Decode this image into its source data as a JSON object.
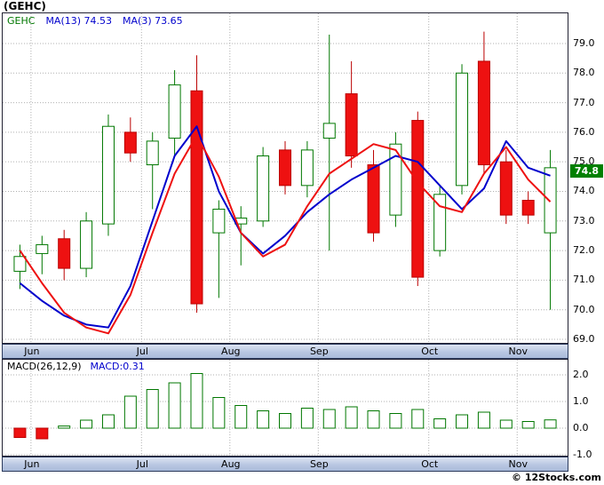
{
  "copyright": "© 12Stocks.com",
  "chart_data": {
    "type": "candlestick",
    "title": "(GEHC)",
    "symbol": "GEHC",
    "legend": {
      "symbol": "GEHC",
      "ma13": "MA(13) 74.53",
      "ma3": "MA(3) 73.65",
      "macd_label": "MACD(26,12,9)",
      "macd_value": "MACD:0.31"
    },
    "last_price": "74.8",
    "price_axis": {
      "ticks": [
        "79.0",
        "78.0",
        "77.0",
        "76.0",
        "75.0",
        "74.0",
        "73.0",
        "72.0",
        "71.0",
        "70.0",
        "69.0"
      ],
      "max": 80.05,
      "min": 68.85
    },
    "months": [
      {
        "label": "Jun",
        "i": 0
      },
      {
        "label": "Jul",
        "i": 5
      },
      {
        "label": "Aug",
        "i": 9
      },
      {
        "label": "Sep",
        "i": 13
      },
      {
        "label": "Oct",
        "i": 18
      },
      {
        "label": "Nov",
        "i": 22
      }
    ],
    "candles": [
      {
        "o": 71.3,
        "h": 72.2,
        "l": 70.7,
        "c": 71.8
      },
      {
        "o": 71.9,
        "h": 72.5,
        "l": 71.2,
        "c": 72.2
      },
      {
        "o": 72.4,
        "h": 72.7,
        "l": 71.0,
        "c": 71.4
      },
      {
        "o": 71.4,
        "h": 73.3,
        "l": 71.1,
        "c": 73.0
      },
      {
        "o": 72.9,
        "h": 76.6,
        "l": 72.5,
        "c": 76.2
      },
      {
        "o": 76.0,
        "h": 76.5,
        "l": 75.0,
        "c": 75.3
      },
      {
        "o": 74.9,
        "h": 76.0,
        "l": 73.4,
        "c": 75.7
      },
      {
        "o": 75.8,
        "h": 78.1,
        "l": 75.2,
        "c": 77.6
      },
      {
        "o": 77.4,
        "h": 78.6,
        "l": 69.9,
        "c": 70.2
      },
      {
        "o": 72.6,
        "h": 73.7,
        "l": 70.4,
        "c": 73.4
      },
      {
        "o": 72.9,
        "h": 73.5,
        "l": 71.5,
        "c": 73.1
      },
      {
        "o": 73.0,
        "h": 75.5,
        "l": 72.8,
        "c": 75.2
      },
      {
        "o": 75.4,
        "h": 75.7,
        "l": 73.9,
        "c": 74.2
      },
      {
        "o": 74.2,
        "h": 75.7,
        "l": 73.8,
        "c": 75.4
      },
      {
        "o": 75.8,
        "h": 79.3,
        "l": 72.0,
        "c": 76.3
      },
      {
        "o": 77.3,
        "h": 78.4,
        "l": 74.8,
        "c": 75.2
      },
      {
        "o": 74.9,
        "h": 75.4,
        "l": 72.3,
        "c": 72.6
      },
      {
        "o": 73.2,
        "h": 76.0,
        "l": 72.8,
        "c": 75.6
      },
      {
        "o": 76.4,
        "h": 76.7,
        "l": 70.8,
        "c": 71.1
      },
      {
        "o": 72.0,
        "h": 74.2,
        "l": 71.8,
        "c": 73.9
      },
      {
        "o": 74.2,
        "h": 78.3,
        "l": 73.9,
        "c": 78.0
      },
      {
        "o": 78.4,
        "h": 79.4,
        "l": 74.6,
        "c": 74.9
      },
      {
        "o": 75.0,
        "h": 75.4,
        "l": 72.9,
        "c": 73.2
      },
      {
        "o": 73.7,
        "h": 74.0,
        "l": 72.9,
        "c": 73.2
      },
      {
        "o": 72.6,
        "h": 75.4,
        "l": 70.0,
        "c": 74.8
      }
    ],
    "ma13": [
      70.9,
      70.3,
      69.8,
      69.5,
      69.4,
      70.8,
      73.0,
      75.2,
      76.2,
      74.0,
      72.6,
      71.9,
      72.5,
      73.3,
      73.9,
      74.4,
      74.8,
      75.2,
      75.0,
      74.2,
      73.4,
      74.1,
      75.7,
      74.8,
      74.53
    ],
    "ma3": [
      72.0,
      70.9,
      69.9,
      69.4,
      69.2,
      70.5,
      72.6,
      74.6,
      75.9,
      74.5,
      72.6,
      71.8,
      72.2,
      73.5,
      74.6,
      75.1,
      75.6,
      75.4,
      74.3,
      73.5,
      73.3,
      74.6,
      75.5,
      74.4,
      73.65
    ],
    "macd": {
      "ticks": [
        "2.0",
        "1.0",
        "0.0",
        "-1.0"
      ],
      "values": [
        -0.35,
        -0.4,
        0.08,
        0.3,
        0.5,
        1.2,
        1.45,
        1.7,
        2.05,
        1.15,
        0.85,
        0.65,
        0.55,
        0.75,
        0.7,
        0.8,
        0.65,
        0.55,
        0.7,
        0.35,
        0.5,
        0.6,
        0.3,
        0.25,
        0.31
      ]
    },
    "colors": {
      "up": "#007700",
      "down_fill": "#ee1111",
      "down_stroke": "#bb0000",
      "ma13": "#0000cc",
      "ma3": "#ee1111",
      "grid": "#b0b0b0",
      "border": "#222233",
      "tag_bg": "#008000"
    }
  }
}
